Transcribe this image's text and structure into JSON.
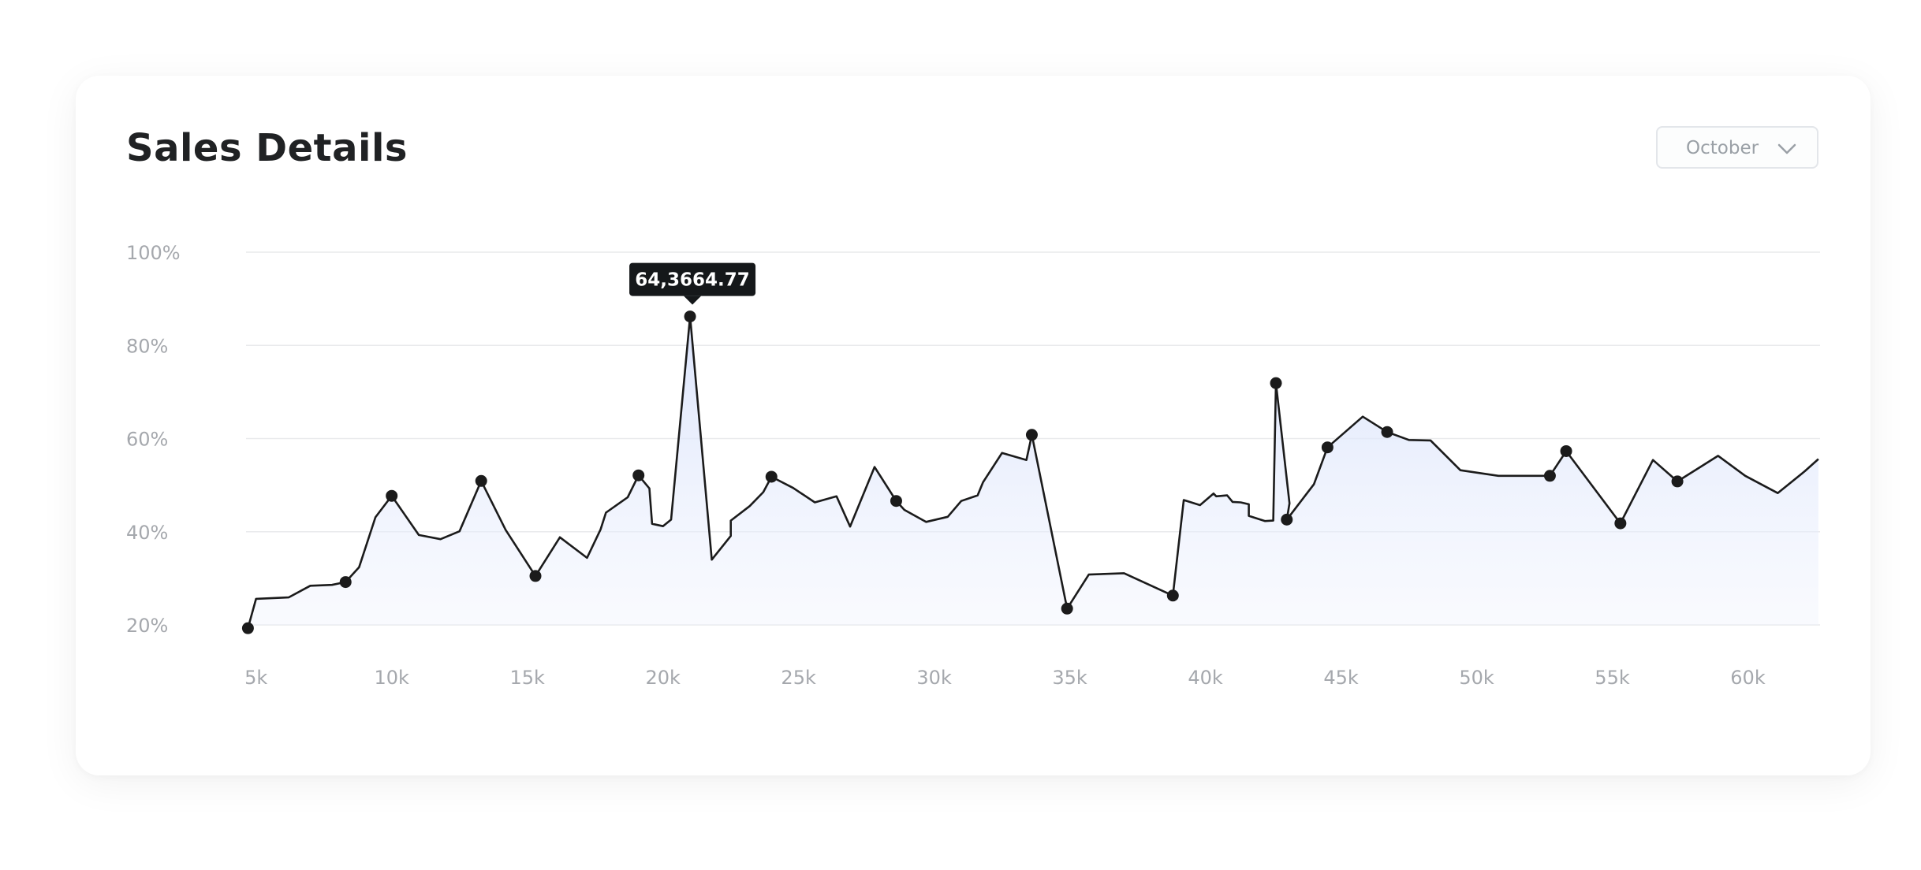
{
  "card": {
    "title": "Sales Details",
    "month_select": {
      "selected": "October",
      "icon": "chevron-down-icon"
    }
  },
  "colors": {
    "line": "#1b1b1b",
    "area_top": "#dde5fb",
    "grid": "#e9eaec",
    "tooltip_bg": "#15181a"
  },
  "chart_data": {
    "type": "area",
    "title": "Sales Details",
    "xlabel": "",
    "ylabel": "",
    "x_ticks": [
      "5k",
      "10k",
      "15k",
      "20k",
      "25k",
      "30k",
      "35k",
      "40k",
      "45k",
      "50k",
      "55k",
      "60k"
    ],
    "x_tick_values": [
      5000,
      10000,
      15000,
      20000,
      25000,
      30000,
      35000,
      40000,
      45000,
      50000,
      55000,
      60000
    ],
    "y_ticks": [
      "20%",
      "40%",
      "60%",
      "80%",
      "100%"
    ],
    "y_tick_values": [
      20,
      40,
      60,
      80,
      100
    ],
    "xlim": [
      4630,
      62660
    ],
    "ylim": [
      20,
      100
    ],
    "grid": true,
    "legend": "none",
    "series": [
      {
        "x": [
          4700,
          5000,
          6200,
          7000,
          7800,
          8300,
          8800,
          9400,
          10000,
          11000,
          11800,
          12500,
          13300,
          14200,
          15300,
          16200,
          17200,
          17700,
          17900,
          18700,
          19100,
          19500,
          19600,
          20000,
          20300,
          21000,
          21800,
          22500,
          22500,
          23200,
          23700,
          24000,
          24800,
          25600,
          26400,
          26900,
          27800,
          28600,
          28900,
          29700,
          30500,
          31000,
          31600,
          31800,
          32500,
          33400,
          33600,
          34900,
          35700,
          37000,
          38800,
          39200,
          39800,
          40300,
          40400,
          40800,
          41000,
          41300,
          41600,
          41600,
          42200,
          42500,
          42600,
          43100,
          43000,
          44000,
          44500,
          45800,
          46700,
          47500,
          48300,
          49400,
          50800,
          52700,
          53300,
          55300,
          56500,
          57400,
          58900,
          59900,
          61100,
          62100,
          62600
        ],
        "y": [
          19.3,
          25.6,
          25.9,
          28.4,
          28.6,
          29.2,
          32.4,
          43.1,
          47.7,
          39.3,
          38.4,
          40.1,
          50.9,
          40.4,
          30.5,
          38.8,
          34.4,
          40.5,
          44.1,
          47.4,
          52.1,
          49.3,
          41.7,
          41.2,
          42.6,
          86.2,
          34.0,
          39.1,
          42.4,
          45.5,
          48.5,
          51.8,
          49.4,
          46.3,
          47.6,
          41.1,
          53.9,
          46.6,
          44.7,
          42.1,
          43.2,
          46.6,
          47.8,
          50.6,
          56.9,
          55.4,
          60.8,
          23.5,
          30.8,
          31.1,
          26.3,
          46.8,
          45.7,
          48.2,
          47.6,
          47.8,
          46.4,
          46.3,
          45.9,
          43.4,
          42.3,
          42.4,
          71.9,
          46.1,
          42.6,
          50.2,
          58.1,
          64.7,
          61.4,
          59.7,
          59.6,
          53.2,
          52.0,
          52.0,
          57.3,
          41.8,
          55.4,
          50.8,
          56.3,
          52.0,
          48.3,
          53.0,
          55.6
        ],
        "markers": [
          0,
          5,
          8,
          12,
          14,
          20,
          25,
          31,
          37,
          46,
          47,
          50,
          62,
          64,
          66,
          68,
          73,
          74,
          75,
          77
        ]
      }
    ],
    "tooltip": {
      "label": "64,3664.77",
      "point_index": 25
    }
  }
}
